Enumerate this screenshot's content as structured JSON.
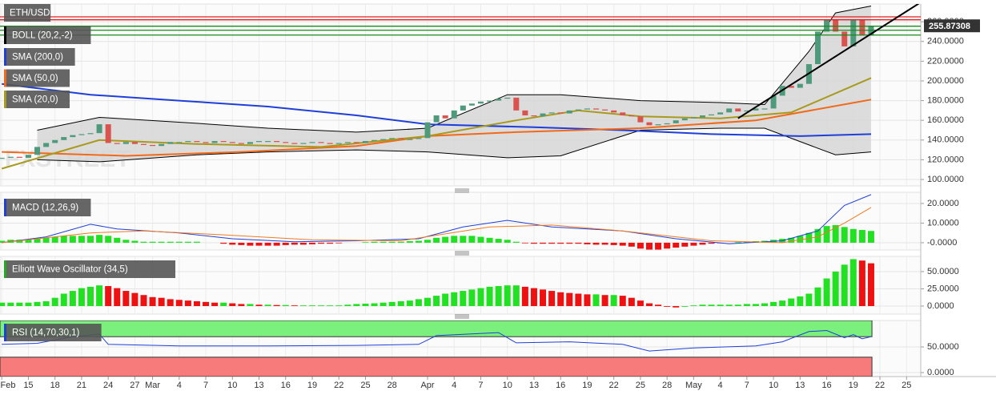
{
  "chart_data": [
    {
      "type": "candlestick",
      "symbol": "ETH/USD",
      "watermark": "FXSTREET",
      "up_color": "#4f9a7c",
      "down_color": "#d9534f",
      "values": [
        122,
        123,
        122,
        125,
        133,
        137,
        140,
        143,
        145,
        146,
        147,
        156,
        137,
        136,
        138,
        136,
        135,
        134,
        136,
        138,
        138,
        139,
        138,
        137,
        139,
        138,
        137,
        136,
        138,
        139,
        139,
        138,
        137,
        136,
        137,
        138,
        137,
        136,
        137,
        138,
        137,
        139,
        140,
        141,
        142,
        141,
        141,
        142,
        158,
        165,
        162,
        170,
        175,
        177,
        179,
        180,
        182,
        183,
        170,
        165,
        164,
        167,
        168,
        167,
        170,
        171,
        172,
        171,
        170,
        168,
        165,
        164,
        158,
        155,
        156,
        157,
        160,
        162,
        163,
        165,
        166,
        168,
        172,
        169,
        170,
        172,
        172,
        185,
        195,
        193,
        197,
        217,
        250,
        262,
        250,
        235,
        262,
        246,
        255.87308
      ],
      "band": {
        "name": "BOLL (20,2,-2)",
        "color": "#000000",
        "fill": "#d4d4d4",
        "x": [
          4,
          11,
          22,
          30,
          40,
          48,
          57,
          63,
          72,
          81,
          86,
          91,
          94,
          98
        ],
        "upper": [
          150,
          163,
          157,
          152,
          148,
          152,
          186,
          186,
          180,
          178,
          176,
          230,
          269,
          276
        ],
        "lower": [
          120,
          118,
          125,
          128,
          130,
          128,
          122,
          124,
          150,
          152,
          152,
          135,
          125,
          128
        ]
      },
      "series": [
        {
          "name": "SMA (200,0)",
          "color": "#1f3fd8",
          "x": [
            0,
            10,
            20,
            30,
            40,
            48,
            60,
            70,
            80,
            90,
            98
          ],
          "values": [
            197,
            186,
            180,
            174,
            165,
            156,
            153,
            150,
            146,
            144,
            146
          ]
        },
        {
          "name": "SMA (50,0)",
          "color": "#f06a1a",
          "x": [
            0,
            14,
            27,
            40,
            48,
            58,
            72,
            85,
            98
          ],
          "values": [
            128,
            124,
            128,
            134,
            144,
            148,
            152,
            160,
            181
          ]
        },
        {
          "name": "SMA (20,0)",
          "color": "#a89a1e",
          "x": [
            0,
            11,
            22,
            36,
            48,
            58,
            65,
            72,
            81,
            89,
            98
          ],
          "values": [
            111,
            140,
            136,
            133,
            144,
            160,
            170,
            164,
            162,
            168,
            203
          ]
        }
      ],
      "hlines": [
        {
          "value": 265,
          "color": "#e02020"
        },
        {
          "value": 262,
          "color": "#e02020"
        },
        {
          "value": 255.5,
          "color": "#1a8a1a"
        },
        {
          "value": 251.4,
          "color": "#1a8a1a"
        },
        {
          "value": 246.5,
          "color": "#1a8a1a"
        }
      ],
      "trendline": {
        "color": "#000000",
        "x": [
          83,
          104
        ],
        "values": [
          162,
          282
        ]
      },
      "ylim": [
        93.5,
        278
      ],
      "yticks": [
        {
          "value": 100,
          "label": "100.0000"
        },
        {
          "value": 120,
          "label": "120.0000"
        },
        {
          "value": 140,
          "label": "140.0000"
        },
        {
          "value": 160,
          "label": "160.0000"
        },
        {
          "value": 180,
          "label": "180.0000"
        },
        {
          "value": 200,
          "label": "200.0000"
        },
        {
          "value": 220,
          "label": "220.0000"
        },
        {
          "value": 240,
          "label": "240.0000"
        },
        {
          "value": 260,
          "label": "260.0000"
        }
      ]
    },
    {
      "type": "macd",
      "name": "MACD (12,26,9)",
      "label_color": "#1f3fd8",
      "pos_color": "#22e022",
      "neg_color": "#ee1111",
      "values": [
        1,
        1.5,
        1.5,
        1.5,
        2,
        2.5,
        3,
        3.5,
        3.5,
        3.5,
        3.5,
        4,
        3.5,
        2.5,
        1.5,
        1,
        0.5,
        0.5,
        0.5,
        0.5,
        0.5,
        0.5,
        0.5,
        0,
        0,
        -0.5,
        -1,
        -1.2,
        -1.5,
        -1.5,
        -1.5,
        -1.5,
        -1.2,
        -1,
        -1,
        -0.8,
        -0.5,
        -0.5,
        -0.3,
        0,
        0,
        0.3,
        0.5,
        0.5,
        0.5,
        0.5,
        0.8,
        1,
        1.5,
        2.5,
        3,
        3.5,
        3.5,
        3.5,
        3,
        2.5,
        2,
        1.5,
        0.5,
        -0.3,
        -0.5,
        -0.5,
        -0.5,
        -0.5,
        -0.5,
        -0.5,
        -0.8,
        -1,
        -1,
        -1.2,
        -1.5,
        -2,
        -3,
        -3.5,
        -3.5,
        -3,
        -2.5,
        -2,
        -1.5,
        -1,
        -0.5,
        -0.3,
        0,
        0.3,
        0.5,
        0.8,
        1,
        1.5,
        2,
        2.5,
        3.5,
        5,
        7,
        8.5,
        9,
        8,
        7,
        6.5,
        6
      ],
      "series": [
        {
          "color": "#1f3fd8",
          "x": [
            0,
            5,
            10,
            13,
            20,
            26,
            33,
            40,
            47,
            52,
            57,
            62,
            70,
            76,
            82,
            88,
            92,
            95,
            98
          ],
          "values": [
            0,
            3,
            9.4,
            7,
            5,
            2,
            0.5,
            1,
            2,
            8,
            11.4,
            8,
            6,
            2,
            -0.5,
            1,
            6,
            19,
            24.5
          ]
        },
        {
          "color": "#f07a20",
          "x": [
            0,
            10,
            16,
            25,
            35,
            45,
            55,
            62,
            70,
            80,
            88,
            92,
            95,
            98
          ],
          "values": [
            0,
            5,
            6,
            4,
            1.5,
            1,
            8,
            9,
            6,
            1,
            0,
            3,
            10,
            18
          ]
        }
      ],
      "ylim": [
        -3.7,
        25.7
      ],
      "yticks": [
        {
          "value": 0,
          "label": "-0.0000"
        },
        {
          "value": 10,
          "label": "10.0000"
        },
        {
          "value": 20,
          "label": "20.0000"
        }
      ]
    },
    {
      "type": "oscillator",
      "name": "Elliott Wave Oscillator (34,5)",
      "label_color": "#22aa22",
      "up_color": "#22e022",
      "down_color": "#ee1111",
      "values": [
        5,
        5,
        5,
        5,
        6,
        7,
        12,
        18,
        22,
        26,
        28,
        30,
        29,
        26,
        22,
        19,
        16,
        13,
        12,
        10,
        9,
        8,
        7,
        6,
        5,
        5,
        4,
        3,
        3,
        2,
        2,
        1.5,
        1.5,
        1,
        1,
        1,
        1,
        1,
        1,
        2,
        3,
        3.5,
        4,
        5,
        6,
        7,
        8,
        10,
        12,
        15,
        18,
        20,
        22,
        24,
        26,
        28,
        29,
        30,
        30,
        28,
        26,
        24,
        22,
        20,
        19,
        18,
        17,
        17,
        16,
        16,
        15,
        12,
        8,
        4,
        2,
        -1,
        -2,
        -1,
        1,
        2,
        2,
        2,
        2,
        2,
        3,
        3,
        4,
        6,
        8,
        11,
        14,
        18,
        27,
        40,
        50,
        60,
        68,
        66,
        62
      ],
      "ylim": [
        -11.6,
        72
      ],
      "yticks": [
        {
          "value": 0,
          "label": "0.0000"
        },
        {
          "value": 25,
          "label": "25.0000"
        },
        {
          "value": 50,
          "label": "50.0000"
        }
      ]
    },
    {
      "type": "rsi",
      "name": "RSI (14,70,30,1)",
      "label_color": "#1f3fd8",
      "overbought": 70,
      "oversold": 30,
      "overbought_color": "#7cf07c",
      "oversold_color": "#f77b7b",
      "series": [
        {
          "color": "#1f3fd8",
          "x": [
            0,
            4,
            8,
            11,
            12,
            20,
            30,
            40,
            47,
            49,
            56,
            58,
            64,
            70,
            73,
            78,
            85,
            88,
            91,
            93,
            95,
            96,
            97,
            98
          ],
          "values": [
            55,
            57,
            70,
            75,
            55,
            52,
            52,
            53,
            55,
            72,
            78,
            58,
            60,
            55,
            42,
            48,
            52,
            60,
            80,
            82,
            68,
            74,
            66,
            70
          ]
        }
      ],
      "ylim": [
        -7.8,
        101.6
      ],
      "yticks": [
        {
          "value": 0,
          "label": "0.0000"
        },
        {
          "value": 50,
          "label": "50.0000"
        }
      ],
      "xlim": [
        -0.2,
        103.6
      ],
      "xticks": [
        {
          "value": 0,
          "label": "Feb"
        },
        {
          "value": 3,
          "label": "15"
        },
        {
          "value": 6,
          "label": "18"
        },
        {
          "value": 9,
          "label": "21"
        },
        {
          "value": 12,
          "label": "24"
        },
        {
          "value": 15,
          "label": "27"
        },
        {
          "value": 17,
          "label": "Mar"
        },
        {
          "value": 20,
          "label": "4"
        },
        {
          "value": 23,
          "label": "7"
        },
        {
          "value": 26,
          "label": "10"
        },
        {
          "value": 29,
          "label": "13"
        },
        {
          "value": 32,
          "label": "16"
        },
        {
          "value": 35,
          "label": "19"
        },
        {
          "value": 38,
          "label": "22"
        },
        {
          "value": 41,
          "label": "25"
        },
        {
          "value": 44,
          "label": "28"
        },
        {
          "value": 48,
          "label": "Apr"
        },
        {
          "value": 51,
          "label": "4"
        },
        {
          "value": 54,
          "label": "7"
        },
        {
          "value": 57,
          "label": "10"
        },
        {
          "value": 60,
          "label": "13"
        },
        {
          "value": 63,
          "label": "16"
        },
        {
          "value": 66,
          "label": "19"
        },
        {
          "value": 69,
          "label": "22"
        },
        {
          "value": 72,
          "label": "25"
        },
        {
          "value": 75,
          "label": "28"
        },
        {
          "value": 78,
          "label": "May"
        },
        {
          "value": 81,
          "label": "4"
        },
        {
          "value": 84,
          "label": "7"
        },
        {
          "value": 87,
          "label": "10"
        },
        {
          "value": 90,
          "label": "13"
        },
        {
          "value": 93,
          "label": "16"
        },
        {
          "value": 96,
          "label": "19"
        },
        {
          "value": 99,
          "label": "22"
        },
        {
          "value": 102,
          "label": "25"
        }
      ]
    }
  ]
}
